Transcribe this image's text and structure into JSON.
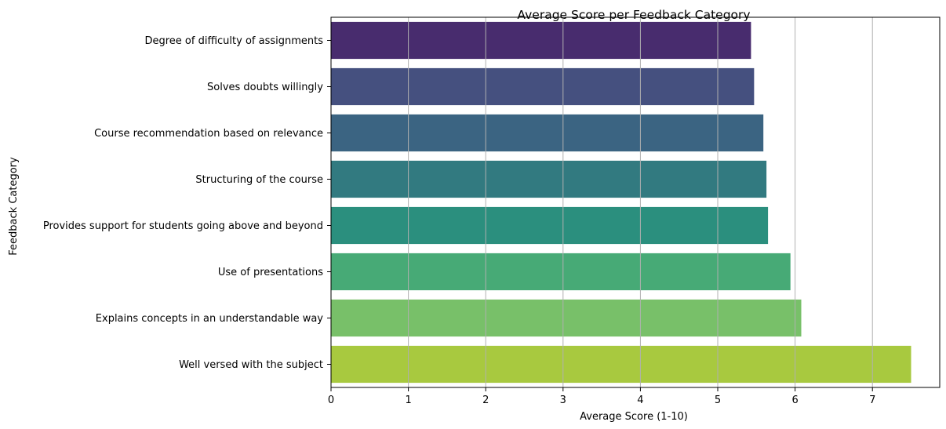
{
  "chart_data": {
    "type": "bar",
    "orientation": "horizontal",
    "title": "Average Score per Feedback Category",
    "xlabel": "Average Score (1-10)",
    "ylabel": "Feedback Category",
    "xlim": [
      0,
      7.87
    ],
    "xticks": [
      0,
      1,
      2,
      3,
      4,
      5,
      6,
      7
    ],
    "grid": "x",
    "categories": [
      "Degree of difficulty of assignments",
      "Solves doubts willingly",
      "Course recommendation based on relevance",
      "Structuring of the course",
      "Provides support for students going above and beyond",
      "Use of presentations",
      "Explains concepts in an understandable way",
      "Well versed with the subject"
    ],
    "values": [
      5.43,
      5.47,
      5.59,
      5.63,
      5.65,
      5.94,
      6.08,
      7.5
    ],
    "colors": [
      "#482c6e",
      "#45507f",
      "#3b6482",
      "#327a80",
      "#2b8f7e",
      "#47aa76",
      "#78c069",
      "#a8c93f"
    ]
  }
}
